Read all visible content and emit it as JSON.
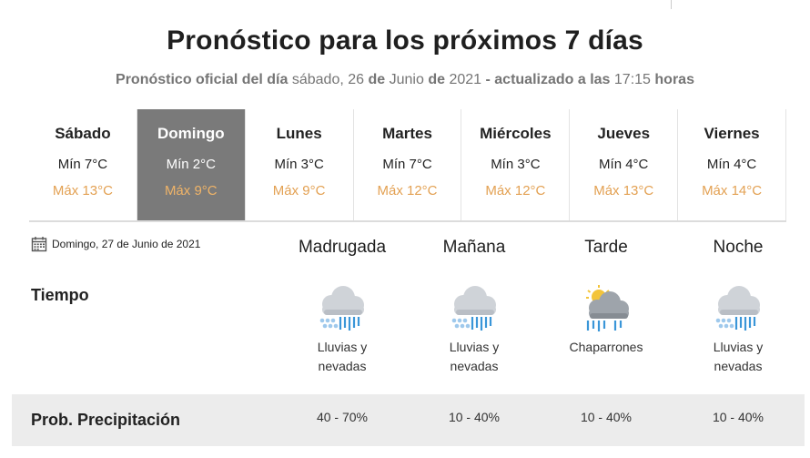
{
  "header": {
    "title": "Pronóstico para los próximos 7 días",
    "subtitle": {
      "prefix": "Pronóstico oficial del día",
      "weekday_date": "sábado, 26",
      "de1": "de",
      "month": "Junio",
      "de2": "de",
      "year": "2021",
      "updated": "- actualizado a las",
      "time": "17:15",
      "suffix": "horas"
    }
  },
  "days": [
    {
      "name": "Sábado",
      "min": "Mín 7°C",
      "max": "Máx 13°C",
      "active": false
    },
    {
      "name": "Domingo",
      "min": "Mín 2°C",
      "max": "Máx 9°C",
      "active": true
    },
    {
      "name": "Lunes",
      "min": "Mín 3°C",
      "max": "Máx 9°C",
      "active": false
    },
    {
      "name": "Martes",
      "min": "Mín 7°C",
      "max": "Máx 12°C",
      "active": false
    },
    {
      "name": "Miércoles",
      "min": "Mín 3°C",
      "max": "Máx 12°C",
      "active": false
    },
    {
      "name": "Jueves",
      "min": "Mín 4°C",
      "max": "Máx 13°C",
      "active": false
    },
    {
      "name": "Viernes",
      "min": "Mín 4°C",
      "max": "Máx 14°C",
      "active": false
    }
  ],
  "detail": {
    "date_label": "Domingo, 27 de Junio de 2021",
    "date_icon": "calendar-icon",
    "tiempo_label": "Tiempo",
    "precip_label": "Prob. Precipitación",
    "periods": [
      {
        "name": "Madrugada",
        "icon": "rain-snow-icon",
        "desc1": "Lluvias y",
        "desc2": "nevadas",
        "precip": "40 - 70%"
      },
      {
        "name": "Mañana",
        "icon": "rain-snow-icon",
        "desc1": "Lluvias y",
        "desc2": "nevadas",
        "precip": "10 - 40%"
      },
      {
        "name": "Tarde",
        "icon": "sun-cloud-rain-icon",
        "desc1": "Chaparrones",
        "desc2": "",
        "precip": "10 - 40%"
      },
      {
        "name": "Noche",
        "icon": "rain-snow-icon",
        "desc1": "Lluvias y",
        "desc2": "nevadas",
        "precip": "10 - 40%"
      }
    ]
  },
  "colors": {
    "max_temp": "#e3a153",
    "active_day_bg": "#7a7a7a",
    "precip_bar_bg": "#ececec"
  }
}
